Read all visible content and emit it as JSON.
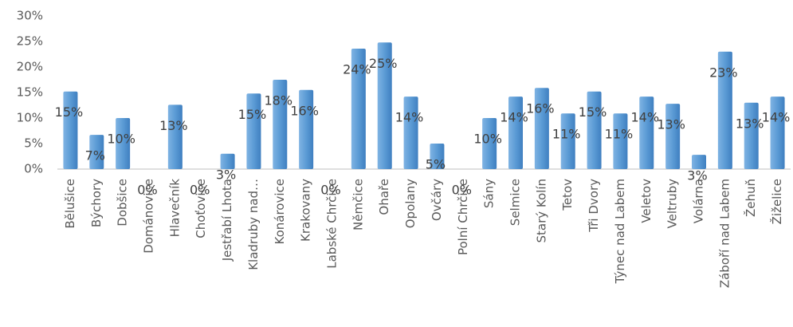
{
  "chart_data": {
    "type": "bar",
    "categories": [
      "Bělušice",
      "Býchory",
      "Dobšice",
      "Dománovice",
      "Hlavečník",
      "Choťovice",
      "Jestřabí Lhota",
      "Kladruby nad…",
      "Konárovice",
      "Krakovany",
      "Labské Chrčice",
      "Němčice",
      "Ohaře",
      "Opolany",
      "Ovčáry",
      "Polní Chrčice",
      "Sány",
      "Selmice",
      "Starý Kolín",
      "Tetov",
      "Tři Dvory",
      "Týnec nad Labem",
      "Veletov",
      "Veltruby",
      "Volárna",
      "Záboří nad Labem",
      "Žehuň",
      "Žiželice"
    ],
    "values": [
      15.2,
      6.7,
      10,
      0,
      12.6,
      0,
      3,
      14.8,
      17.5,
      15.5,
      0,
      23.6,
      24.8,
      14.2,
      5,
      0,
      10,
      14.2,
      15.9,
      10.9,
      15.2,
      10.9,
      14.2,
      12.8,
      2.8,
      23,
      13,
      14.2
    ],
    "value_labels": [
      "15%",
      "7%",
      "10%",
      "0%",
      "13%",
      "0%",
      "3%",
      "15%",
      "18%",
      "16%",
      "0%",
      "24%",
      "25%",
      "14%",
      "5%",
      "0%",
      "10%",
      "14%",
      "16%",
      "11%",
      "15%",
      "11%",
      "14%",
      "13%",
      "3%",
      "23%",
      "13%",
      "14%"
    ],
    "color": "#5b9bd5",
    "ylim": [
      0,
      30
    ],
    "yticks": [
      {
        "value": 0,
        "label": "0%"
      },
      {
        "value": 5,
        "label": "5%"
      },
      {
        "value": 10,
        "label": "10%"
      },
      {
        "value": 15,
        "label": "15%"
      },
      {
        "value": 20,
        "label": "20%"
      },
      {
        "value": 25,
        "label": "25%"
      },
      {
        "value": 30,
        "label": "30%"
      }
    ],
    "grid": false
  }
}
